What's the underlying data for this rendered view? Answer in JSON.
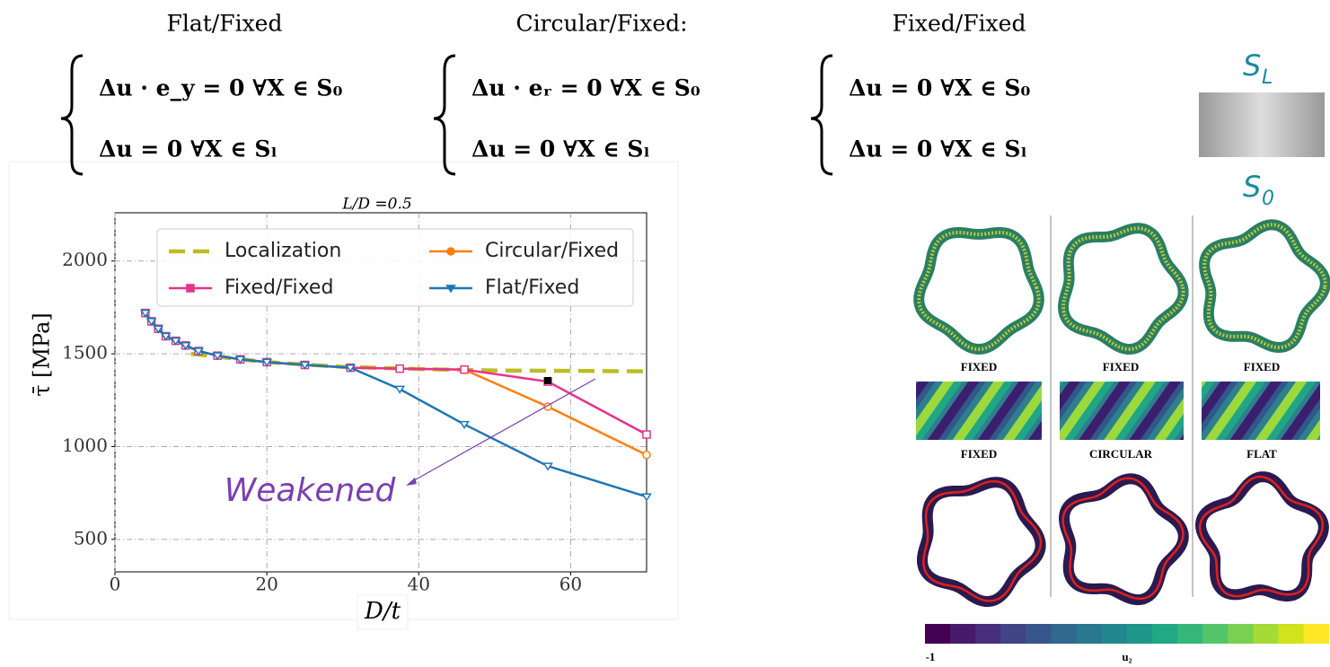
{
  "equations": [
    {
      "title": "Flat/Fixed",
      "lines": [
        "Δu · e_y = 0    ∀X ∈ S₀",
        "Δu = 0    ∀X ∈ Sₗ"
      ]
    },
    {
      "title": "Circular/Fixed:",
      "lines": [
        "Δu · eᵣ = 0    ∀X ∈ S₀",
        "Δu = 0    ∀X ∈ Sₗ"
      ]
    },
    {
      "title": "Fixed/Fixed",
      "lines": [
        "Δu = 0    ∀X ∈ S₀",
        "Δu = 0    ∀X ∈ Sₗ"
      ]
    }
  ],
  "chart_data": {
    "type": "line",
    "title": "L/D =0.5",
    "xlabel": "D/t",
    "ylabel": "τ̄ [MPa]",
    "xlim": [
      0,
      70
    ],
    "ylim": [
      325,
      2260
    ],
    "xticks": [
      0,
      20,
      40,
      60
    ],
    "yticks": [
      500,
      1000,
      1500,
      2000
    ],
    "grid": true,
    "legend": "top",
    "annotation": "Weakened",
    "series": [
      {
        "name": "Localization",
        "color": "#bcbd22",
        "dashed": true,
        "x": [
          10,
          20,
          30,
          40,
          50,
          60,
          70
        ],
        "values": [
          1500,
          1455,
          1430,
          1418,
          1410,
          1408,
          1405
        ]
      },
      {
        "name": "Circular/Fixed",
        "color": "#ff7f0e",
        "marker": "circle",
        "x": [
          4,
          4.8,
          5.7,
          6.7,
          8,
          9.3,
          11,
          13.5,
          16.5,
          20,
          25,
          31,
          37.5,
          46,
          57,
          70
        ],
        "values": [
          1720,
          1675,
          1635,
          1595,
          1570,
          1545,
          1515,
          1490,
          1470,
          1455,
          1440,
          1425,
          1420,
          1415,
          1215,
          955
        ]
      },
      {
        "name": "Fixed/Fixed",
        "color": "#e6338c",
        "marker": "square",
        "x": [
          4,
          4.8,
          5.7,
          6.7,
          8,
          9.3,
          11,
          13.5,
          16.5,
          20,
          25,
          31,
          37.5,
          46,
          57,
          70
        ],
        "values": [
          1720,
          1675,
          1635,
          1595,
          1570,
          1545,
          1515,
          1490,
          1470,
          1455,
          1440,
          1425,
          1420,
          1415,
          1350,
          1065
        ]
      },
      {
        "name": "Flat/Fixed",
        "color": "#1f77b4",
        "marker": "triangle",
        "x": [
          4,
          4.8,
          5.7,
          6.7,
          8,
          9.3,
          11,
          13.5,
          16.5,
          20,
          25,
          31,
          37.5,
          46,
          57,
          70
        ],
        "values": [
          1720,
          1675,
          1635,
          1595,
          1570,
          1545,
          1515,
          1490,
          1470,
          1455,
          1440,
          1425,
          1310,
          1120,
          895,
          730
        ]
      }
    ]
  },
  "surfaces": {
    "top": {
      "symbol": "S",
      "sub": "L"
    },
    "bottom": {
      "symbol": "S",
      "sub": "0"
    }
  },
  "panels": {
    "row1_labels": [
      "FIXED",
      "FIXED",
      "FIXED"
    ],
    "row2_labels": [
      "FIXED",
      "CIRCULAR",
      "FLAT"
    ]
  },
  "colorbar": {
    "min_label": "-1",
    "label": "u₂"
  }
}
